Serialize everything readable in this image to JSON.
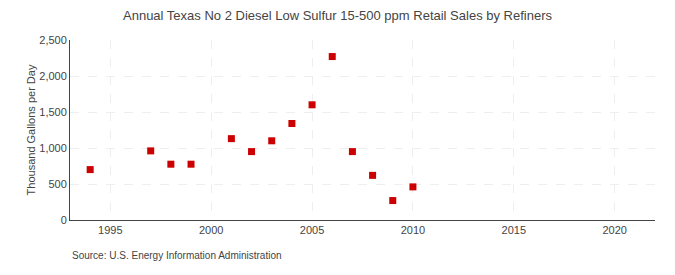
{
  "chart_data": {
    "type": "scatter",
    "title": "Annual Texas No 2 Diesel Low Sulfur 15-500 ppm Retail Sales by Refiners",
    "ylabel": "Thousand Gallons per Day",
    "annotation": "Source: U.S. Energy Information Administration",
    "x": [
      1994,
      1997,
      1998,
      1999,
      2001,
      2002,
      2003,
      2004,
      2005,
      2006,
      2007,
      2008,
      2009,
      2010
    ],
    "values": [
      700,
      960,
      775,
      775,
      1130,
      950,
      1100,
      1340,
      1600,
      2270,
      950,
      620,
      270,
      460
    ],
    "color": "#cc0000",
    "marker": "square",
    "xlim": [
      1993,
      2022
    ],
    "xticks": [
      1995,
      2000,
      2005,
      2010,
      2015,
      2020
    ],
    "ylim": [
      0,
      2500
    ],
    "yticks": [
      0,
      500,
      {
        "value": 1000,
        "label": "1,000"
      },
      {
        "value": 1500,
        "label": "1,500"
      },
      {
        "value": 2000,
        "label": "2,000"
      },
      {
        "value": 2500,
        "label": "2,500"
      }
    ],
    "grid": true
  }
}
